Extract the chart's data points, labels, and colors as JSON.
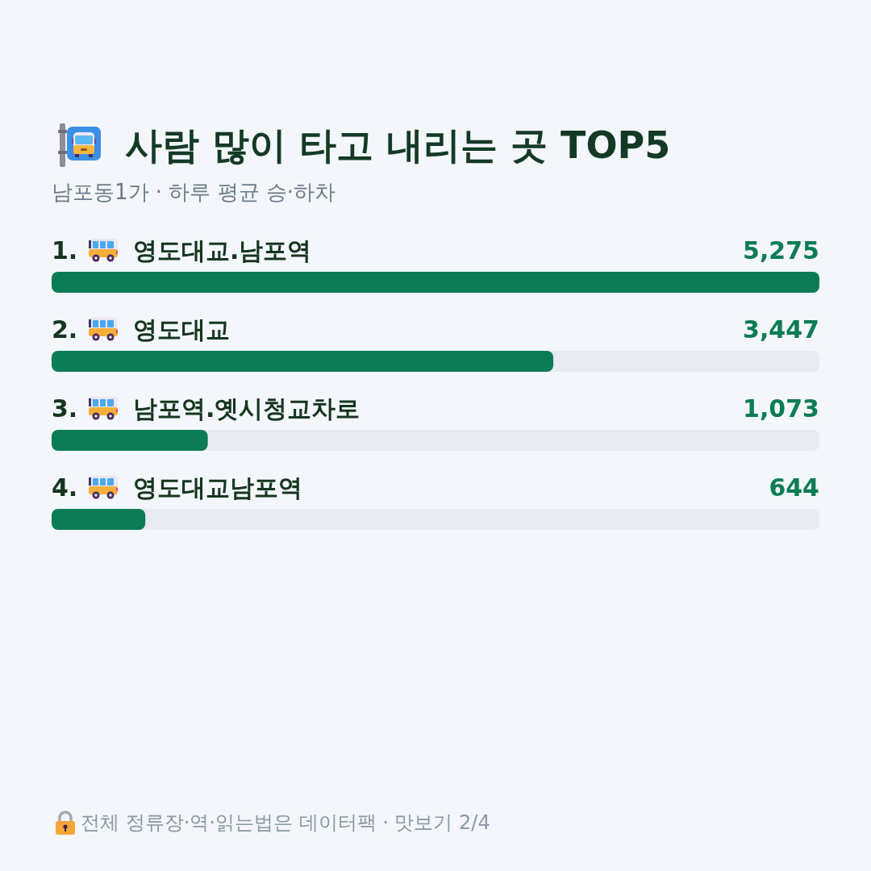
{
  "chart_data": {
    "type": "bar",
    "orientation": "horizontal",
    "title": "사람 많이 타고 내리는 곳 TOP5",
    "subtitle": "남포동1가 · 하루 평균 승·하차",
    "categories": [
      "1. 영도대교.남포역",
      "2. 영도대교",
      "3. 남포역.옛시청교차로",
      "4. 영도대교남포역"
    ],
    "values": [
      5275,
      3447,
      1073,
      644
    ],
    "value_labels": [
      "5,275",
      "3,447",
      "1,073",
      "644"
    ],
    "color": "#0b7c55",
    "xlim": [
      0,
      5275
    ],
    "tick_labels": "y",
    "annotations": [
      "전체 정류장·역·읽는법은 데이터팩 · 맛보기 2/4"
    ]
  }
}
